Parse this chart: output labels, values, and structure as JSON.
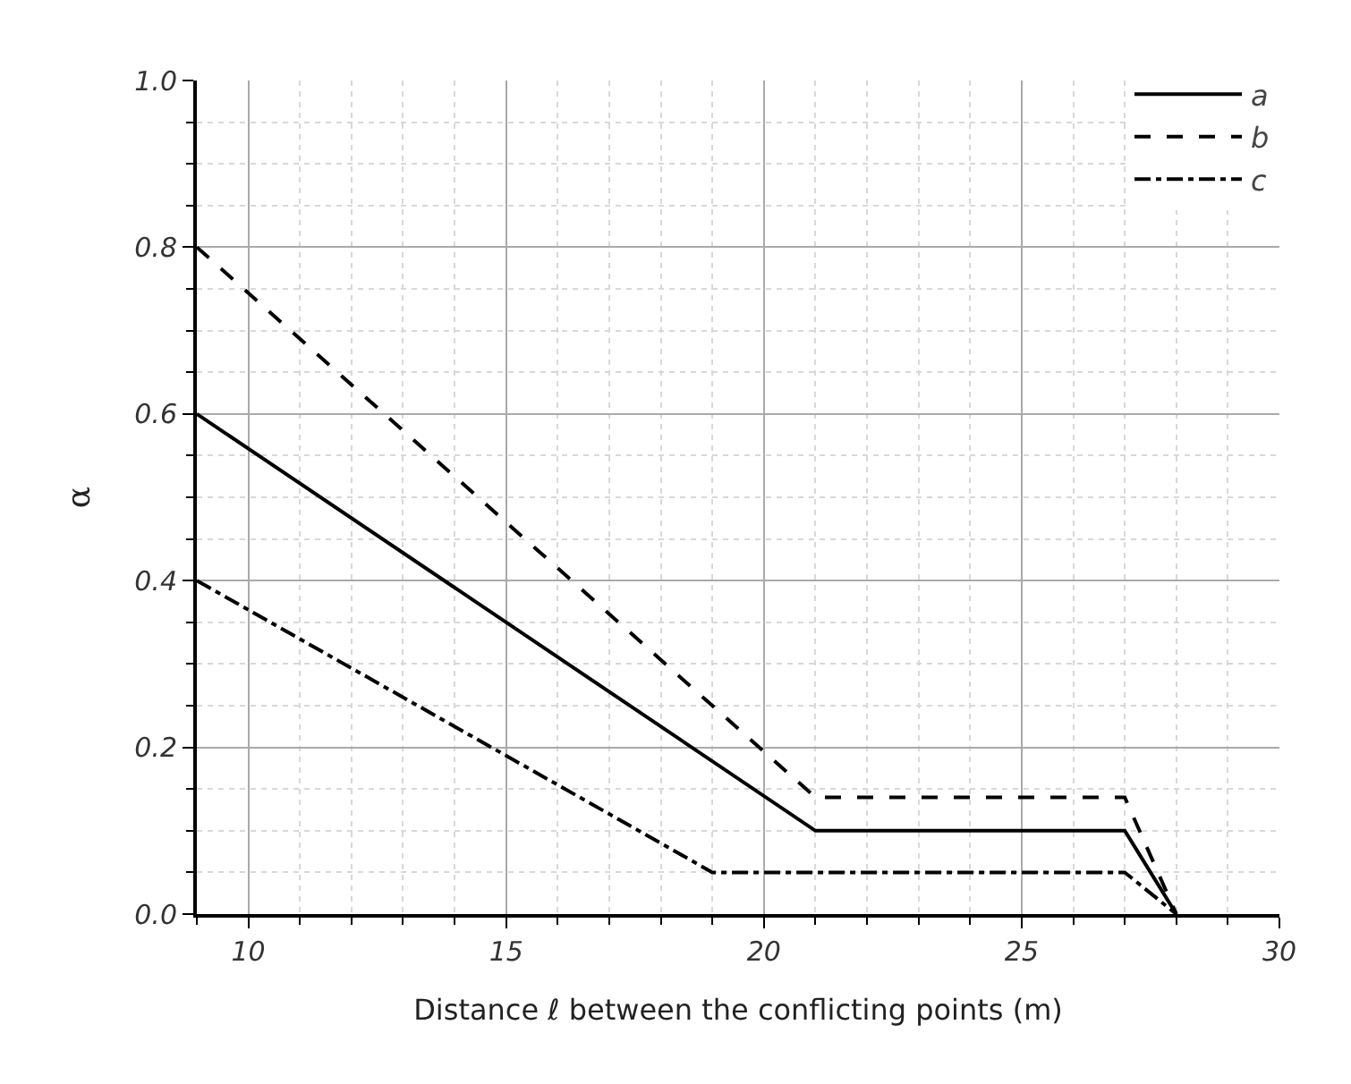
{
  "chart_data": {
    "type": "line",
    "xlabel": "Distance ℓ between the conflicting points (m)",
    "ylabel": "α",
    "series": [
      {
        "name": "a",
        "color": "#000000",
        "line_style": "solid",
        "x": [
          9,
          21,
          27,
          28
        ],
        "values": [
          0.6,
          0.1,
          0.1,
          0.0
        ]
      },
      {
        "name": "b",
        "color": "#000000",
        "line_style": "dashed",
        "x": [
          9,
          21,
          27,
          28
        ],
        "values": [
          0.8,
          0.14,
          0.14,
          0.0
        ]
      },
      {
        "name": "c",
        "color": "#000000",
        "line_style": "dashdot",
        "x": [
          9,
          19,
          27,
          28
        ],
        "values": [
          0.4,
          0.05,
          0.05,
          0.0
        ]
      }
    ],
    "xlim": [
      9,
      30
    ],
    "xticks": [
      10,
      15,
      20,
      25,
      30
    ],
    "ylim": [
      0,
      1.0
    ],
    "yticks": [
      {
        "value": 0,
        "label": "0.0"
      },
      0.2,
      0.4,
      0.6,
      0.8,
      {
        "value": 1.0,
        "label": "1.0"
      }
    ],
    "grid": true,
    "legend": "top right",
    "marker": "none"
  }
}
